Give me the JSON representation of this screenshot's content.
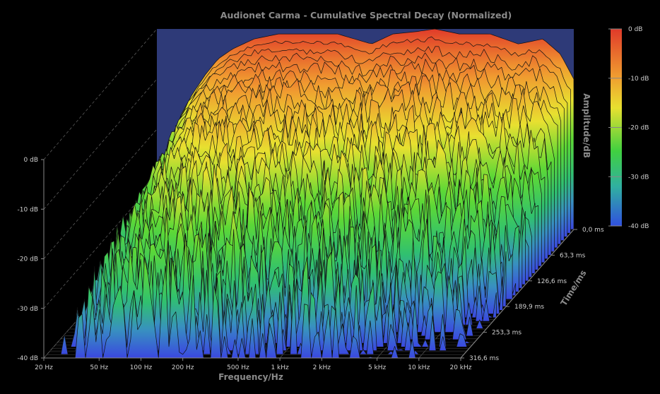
{
  "chart_data": {
    "type": "waterfall-3d",
    "title": "Audionet Carma - Cumulative Spectral Decay (Normalized)",
    "xlabel": "Frequency/Hz",
    "ylabel": "Time/ms",
    "zlabel": "Amplitude/dB",
    "x_scale": "log",
    "x_ticks": [
      {
        "label": "20 Hz",
        "value": 20
      },
      {
        "label": "50 Hz",
        "value": 50
      },
      {
        "label": "100 Hz",
        "value": 100
      },
      {
        "label": "200 Hz",
        "value": 200
      },
      {
        "label": "500 Hz",
        "value": 500
      },
      {
        "label": "1 kHz",
        "value": 1000
      },
      {
        "label": "2 kHz",
        "value": 2000
      },
      {
        "label": "5 kHz",
        "value": 5000
      },
      {
        "label": "10 kHz",
        "value": 10000
      },
      {
        "label": "20 kHz",
        "value": 20000
      }
    ],
    "time_ticks": [
      {
        "label": "0,0 ms",
        "value": 0.0
      },
      {
        "label": "63,3 ms",
        "value": 63.3
      },
      {
        "label": "126,6 ms",
        "value": 126.6
      },
      {
        "label": "189,9 ms",
        "value": 189.9
      },
      {
        "label": "253,3 ms",
        "value": 253.3
      },
      {
        "label": "316,6 ms",
        "value": 316.6
      }
    ],
    "z_ticks": [
      {
        "label": "0 dB",
        "value": 0
      },
      {
        "label": "-10 dB",
        "value": -10
      },
      {
        "label": "-20 dB",
        "value": -20
      },
      {
        "label": "-30 dB",
        "value": -30
      },
      {
        "label": "-40 dB",
        "value": -40
      }
    ],
    "colorbar": {
      "ticks": [
        "0 dB",
        "-10 dB",
        "-20 dB",
        "-30 dB",
        "-40 dB"
      ],
      "colors": [
        "#e03a2a",
        "#f0a030",
        "#e8e030",
        "#40d040",
        "#3050e0"
      ]
    },
    "zlim": [
      -40,
      0
    ],
    "time_range_ms": [
      0.0,
      316.6
    ],
    "freq_range_hz": [
      20,
      20000
    ],
    "front_slice_db": [
      {
        "f": 20,
        "db": -35
      },
      {
        "f": 22,
        "db": -28
      },
      {
        "f": 26,
        "db": -22
      },
      {
        "f": 30,
        "db": -17
      },
      {
        "f": 36,
        "db": -13
      },
      {
        "f": 45,
        "db": -9
      },
      {
        "f": 55,
        "db": -6
      },
      {
        "f": 70,
        "db": -4
      },
      {
        "f": 100,
        "db": -2
      },
      {
        "f": 150,
        "db": -1
      },
      {
        "f": 250,
        "db": -1
      },
      {
        "f": 400,
        "db": -1
      },
      {
        "f": 700,
        "db": -3
      },
      {
        "f": 1000,
        "db": -1
      },
      {
        "f": 1500,
        "db": -0.5
      },
      {
        "f": 2000,
        "db": 0
      },
      {
        "f": 3000,
        "db": -1
      },
      {
        "f": 5000,
        "db": -1
      },
      {
        "f": 8000,
        "db": -3
      },
      {
        "f": 12000,
        "db": -2
      },
      {
        "f": 16000,
        "db": -5
      },
      {
        "f": 20000,
        "db": -10
      }
    ]
  },
  "colors": {
    "background": "#000000",
    "plot_back": "#2e3a78",
    "grid": "#555555"
  }
}
